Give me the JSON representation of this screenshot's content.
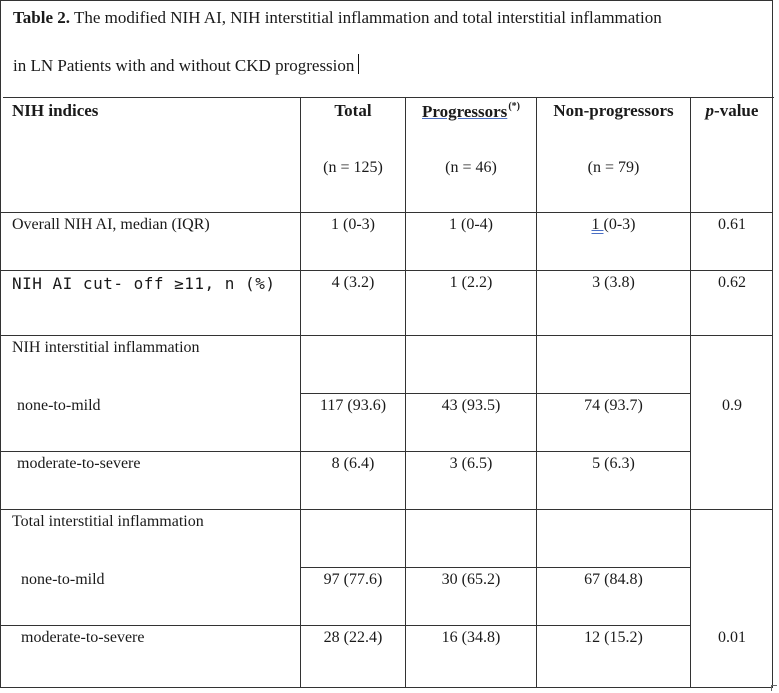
{
  "caption": {
    "table_label": "Table 2.",
    "title_part1": "The modified NIH AI, NIH interstitial inflammation and total interstitial inflammation",
    "title_part2": "in LN Patients with and without CKD progression"
  },
  "header": {
    "col_indices": "NIH indices",
    "col_total": "Total",
    "col_progressors": "Progressors",
    "col_progressors_sup": "(*)",
    "col_nonprogressors": "Non-progressors",
    "col_pvalue_italic": "p",
    "col_pvalue_rest": "-value",
    "n_total": "(n = 125)",
    "n_progressors": "(n = 46)",
    "n_nonprogressors": "(n = 79)"
  },
  "rows": [
    {
      "label": "Overall NIH AI, median (IQR)",
      "total": "1 (0-3)",
      "prog": "1 (0-4)",
      "nonprog_a": "1 ",
      "nonprog_b": "(0-3)",
      "p": "0.61"
    },
    {
      "label": "NIH AI cut- off ≥11, n (%)",
      "total": "4 (3.2)",
      "prog": "1 (2.2)",
      "nonprog": "3 (3.8)",
      "p": "0.62"
    },
    {
      "label": "NIH interstitial inflammation"
    },
    {
      "label": "none-to-mild",
      "total": "117 (93.6)",
      "prog": "43 (93.5)",
      "nonprog": "74 (93.7)",
      "p": "0.9"
    },
    {
      "label": "moderate-to-severe",
      "total": "8 (6.4)",
      "prog": "3 (6.5)",
      "nonprog": "5 (6.3)"
    },
    {
      "label": "Total interstitial inflammation"
    },
    {
      "label": "none-to-mild",
      "total": "97 (77.6)",
      "prog": "30 (65.2)",
      "nonprog": "67 (84.8)"
    },
    {
      "label": "moderate-to-severe",
      "total": "28 (22.4)",
      "prog": "16 (34.8)",
      "nonprog": "12 (15.2)",
      "p": "0.01"
    }
  ]
}
